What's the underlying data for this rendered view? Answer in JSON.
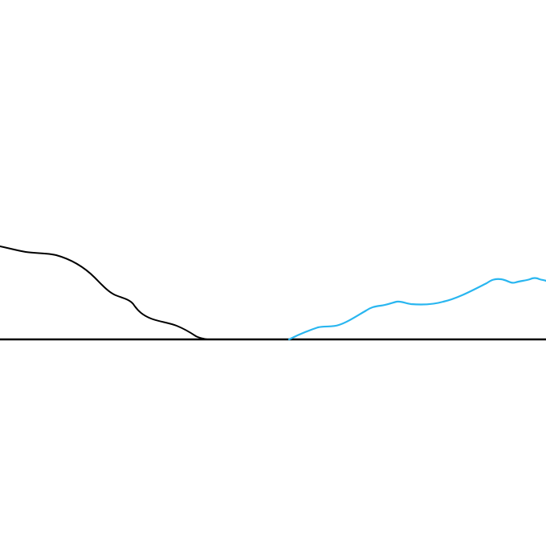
{
  "colors": {
    "background": "#ffffff",
    "baseline": "#000000",
    "left_curve": "#000000",
    "right_curve": "#29b6f0"
  },
  "elements": {
    "baseline": {
      "icon": "horizontal-axis-line"
    },
    "left_curve": {
      "icon": "descending-hand-drawn-curve"
    },
    "right_curve": {
      "icon": "ascending-hand-drawn-curve"
    }
  }
}
